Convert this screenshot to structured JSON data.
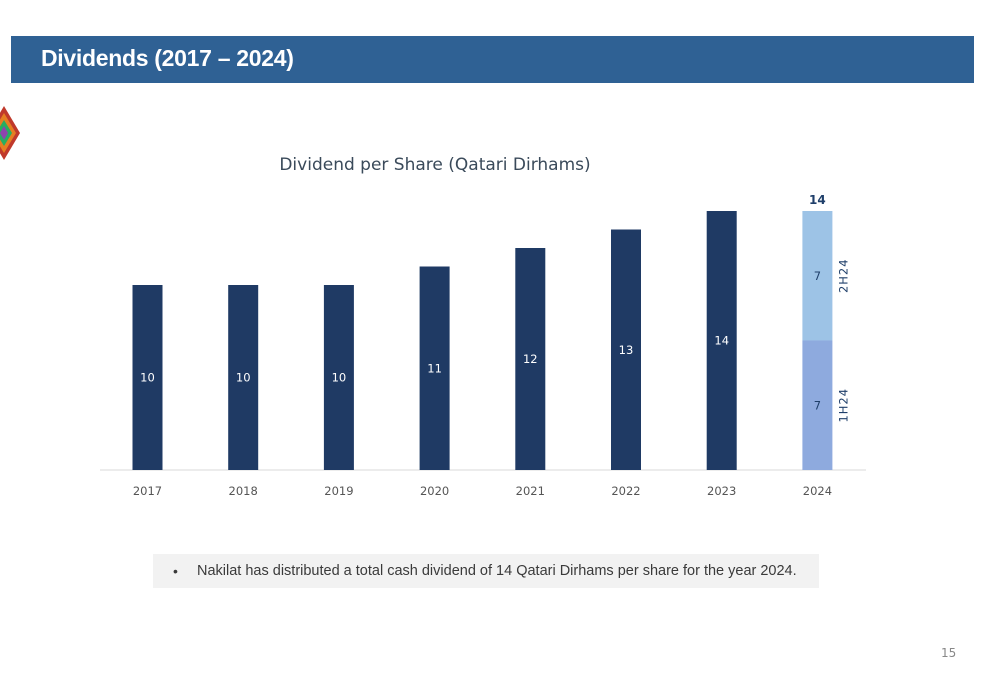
{
  "header": {
    "title": "Dividends (2017 – 2024)"
  },
  "colors": {
    "header_bg": "#2f6194",
    "bar": "#1f3a64",
    "bar_1h": "#8eaade",
    "bar_2h": "#9dc3e6",
    "axis": "#d9d9d9"
  },
  "chart_data": {
    "type": "bar",
    "title": "Dividend per Share (Qatari Dirhams)",
    "xlabel": "",
    "ylabel": "",
    "categories": [
      "2017",
      "2018",
      "2019",
      "2020",
      "2021",
      "2022",
      "2023",
      "2024"
    ],
    "values": [
      10,
      10,
      10,
      11,
      12,
      13,
      14,
      14
    ],
    "stacked_last": {
      "category": "2024",
      "segments": [
        {
          "name": "1H24",
          "value": 7
        },
        {
          "name": "2H24",
          "value": 7
        }
      ],
      "total_label": "14"
    },
    "ylim": [
      0,
      14
    ],
    "grid": false,
    "legend": "none"
  },
  "note": {
    "bullet": "•",
    "text": "Nakilat has distributed a total cash dividend of 14 Qatari Dirhams per share for the year 2024."
  },
  "page_number": "15"
}
